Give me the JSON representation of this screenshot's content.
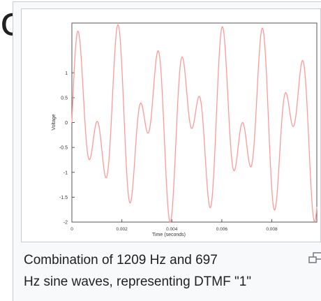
{
  "page": {
    "crop_glyph": "c",
    "caption_line1": "Combination of 1209 Hz and 697",
    "caption_line2": "Hz sine waves, representing DTMF \"1\"",
    "enlarge_icon": "enlarge-icon"
  },
  "chart_data": {
    "type": "line",
    "title": "",
    "xlabel": "Time (seconds)",
    "ylabel": "Voltage",
    "xlim": [
      0,
      0.0098
    ],
    "ylim": [
      -2,
      2
    ],
    "x_ticks": [
      "0",
      "0.002",
      "0.004",
      "0.006",
      "0.008"
    ],
    "x_tick_values": [
      0,
      0.002,
      0.004,
      0.006,
      0.008
    ],
    "y_ticks": [
      "1",
      "0.5",
      "0",
      "-0.5",
      "-1",
      "-1.5",
      "-2"
    ],
    "y_tick_values": [
      1,
      0.5,
      0,
      -0.5,
      -1,
      -1.5,
      -2
    ],
    "grid": false,
    "line_color": "#ff9999",
    "series": [
      {
        "function": "sin(2*pi*1209*t) + sin(2*pi*697*t)",
        "frequencies_hz": [
          1209,
          697
        ]
      }
    ]
  }
}
